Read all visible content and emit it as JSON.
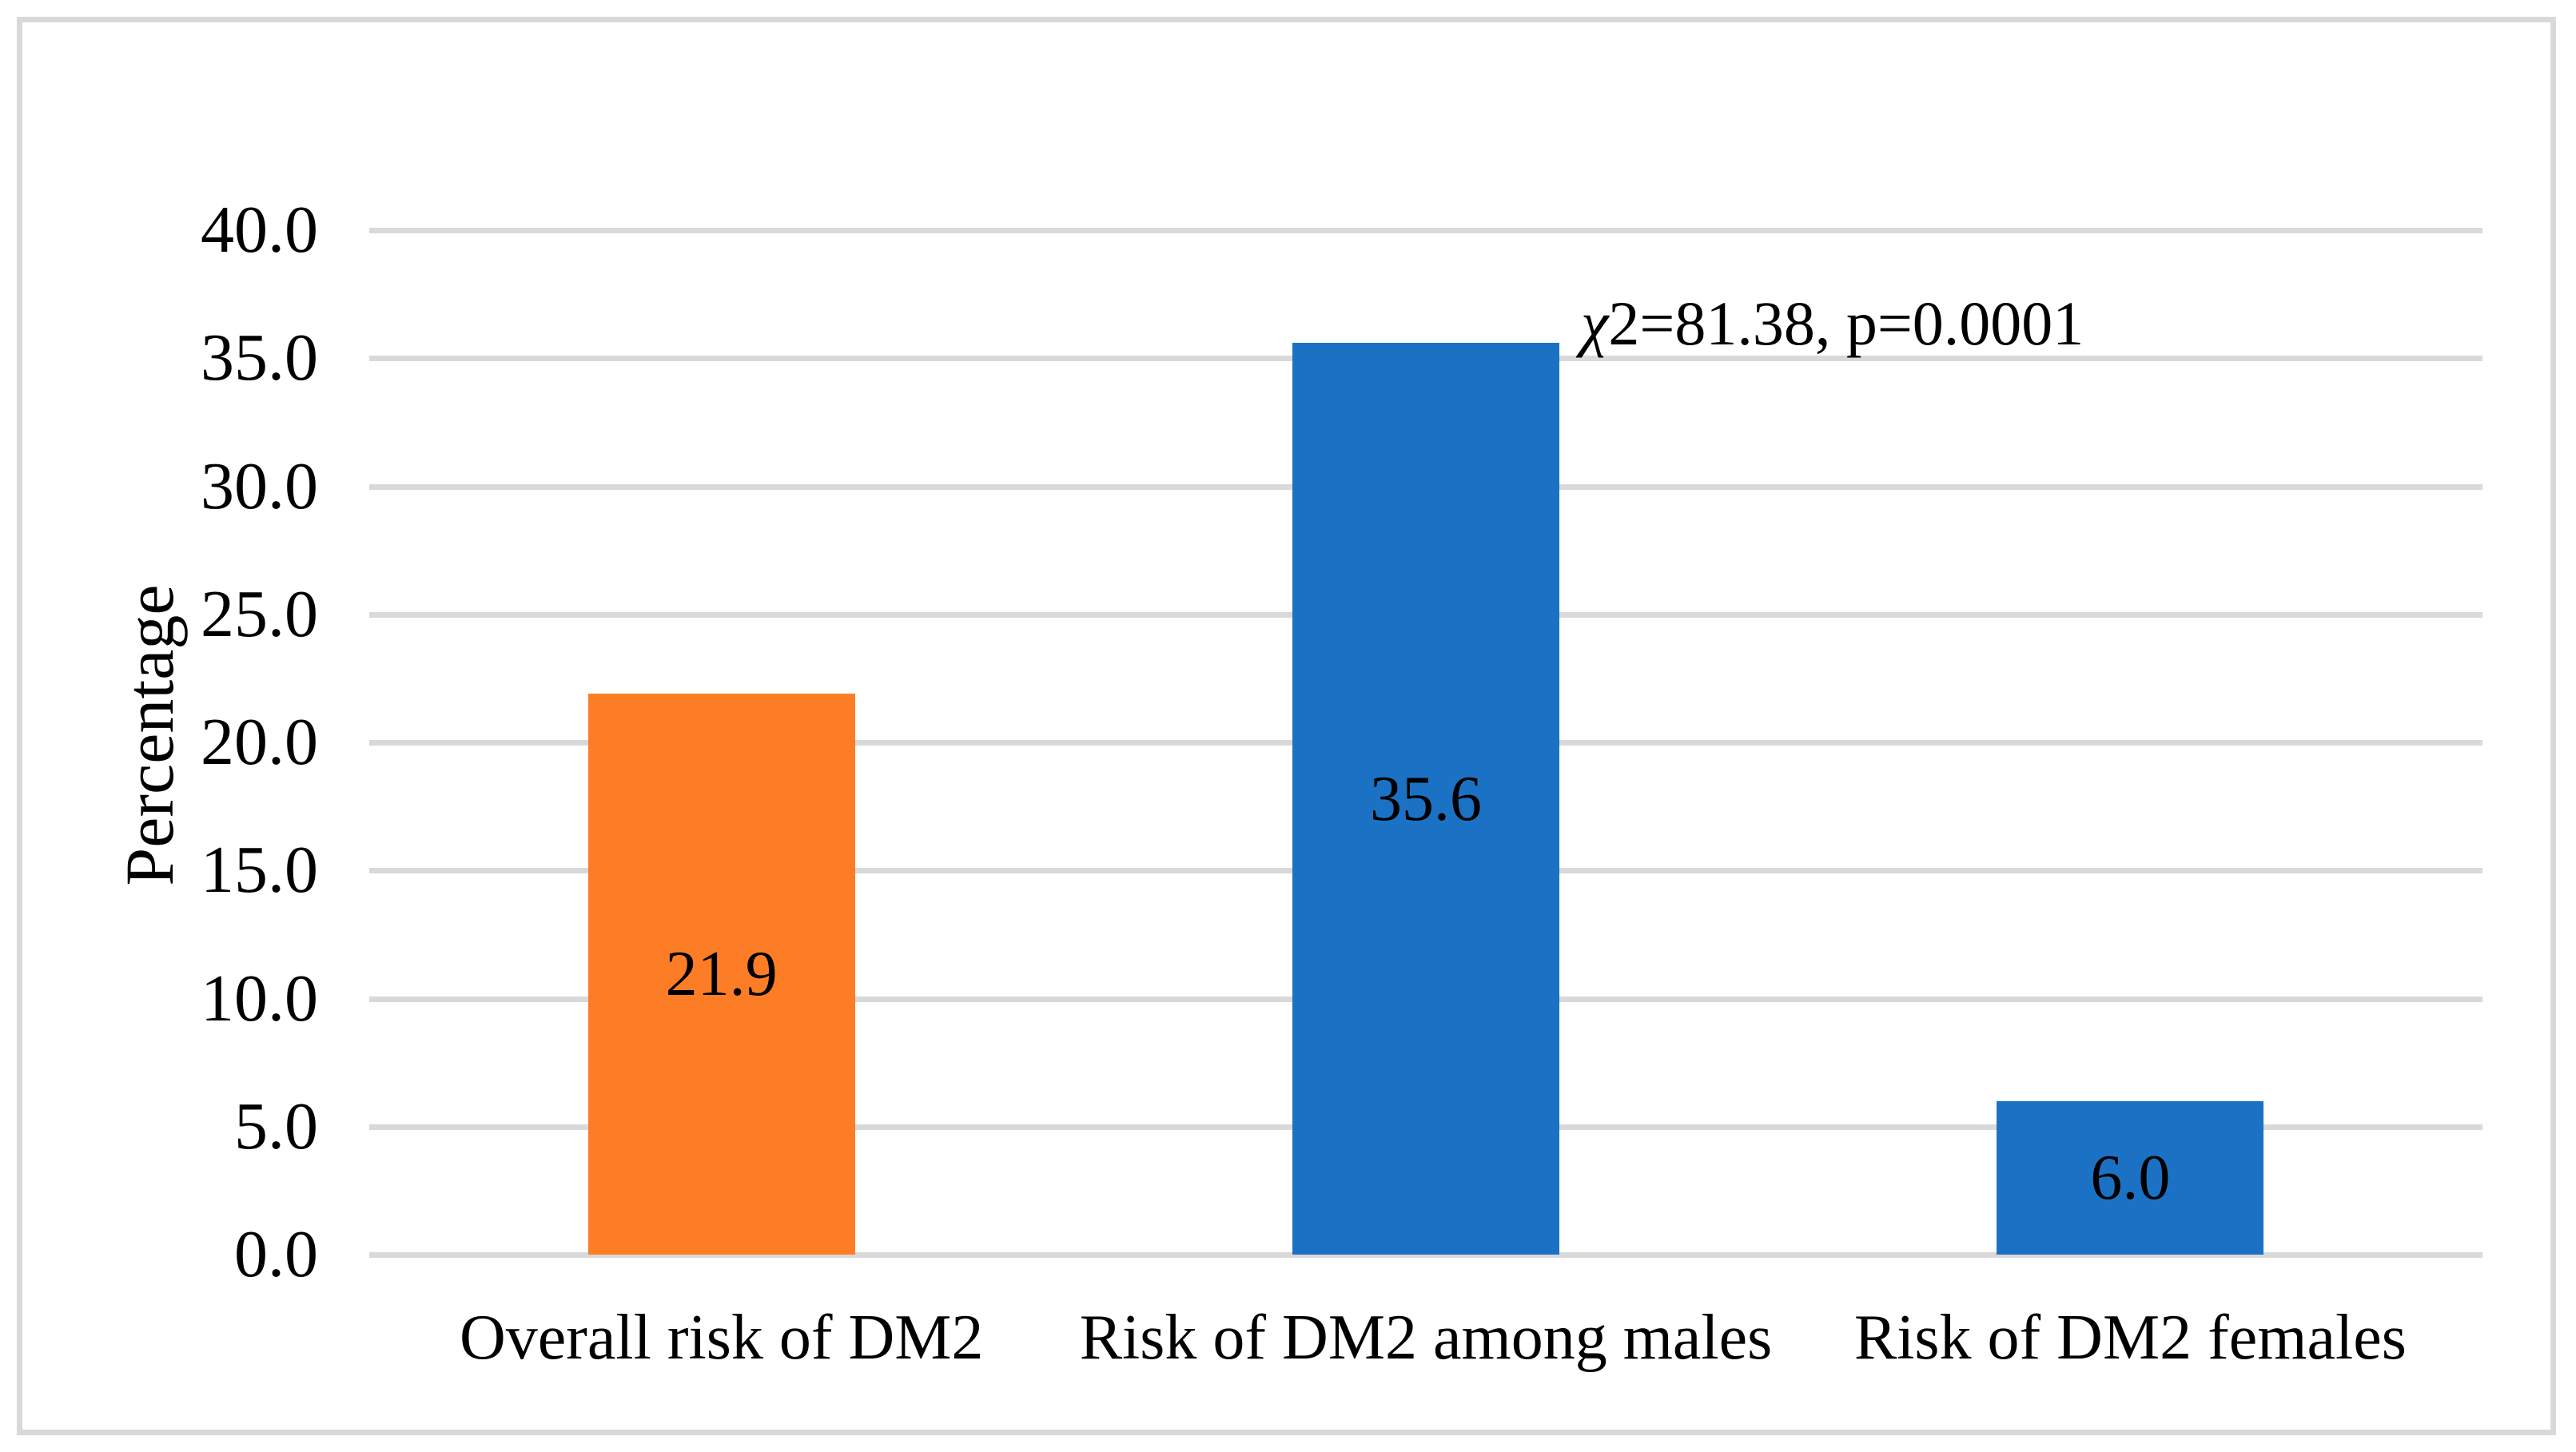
{
  "chart_data": {
    "type": "bar",
    "title": "",
    "xlabel": "",
    "ylabel": "Percentage",
    "categories": [
      "Overall risk of DM2",
      "Risk of DM2 among males",
      "Risk of DM2 females"
    ],
    "values": [
      21.9,
      35.6,
      6.0
    ],
    "value_labels": [
      "21.9",
      "35.6",
      "6.0"
    ],
    "bar_colors": [
      "#FC7D26",
      "#1B72C4",
      "#1B72C4"
    ],
    "ylim": [
      0,
      40
    ],
    "yticks": [
      0,
      5,
      10,
      15,
      20,
      25,
      30,
      35,
      40
    ],
    "ytick_labels": [
      "0.0",
      "5.0",
      "10.0",
      "15.0",
      "20.0",
      "25.0",
      "30.0",
      "35.0",
      "40.0"
    ],
    "grid": true,
    "legend": false,
    "annotation": {
      "chi": "χ",
      "text": "2=81.38, p=0.0001",
      "full": "χ2=81.38, p=0.0001"
    }
  },
  "styles": {
    "gridline_color": "#D9D9D9",
    "axis_line_color": "#D9D9D9",
    "border_color": "#D9D9D9",
    "background_color": "#FFFFFF",
    "text_color": "#000000"
  }
}
